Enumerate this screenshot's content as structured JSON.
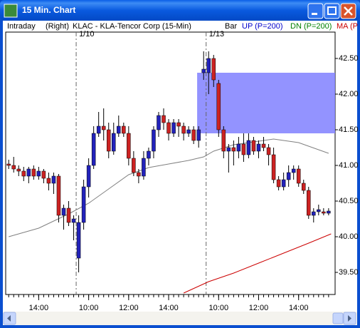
{
  "chart_data": {
    "type": "candlestick",
    "window_title": "15 Min. Chart",
    "header": [
      "Intraday",
      "(Right)",
      "KLAC - KLA-Tencor Corp (15-Min)",
      "Bar",
      "UP (P=200)",
      "DN (P=200)",
      "MA (P"
    ],
    "header_colors": [
      "#000000",
      "#000000",
      "#000000",
      "#000000",
      "#0000cc",
      "#008000",
      "#cc0000"
    ],
    "day_labels": [
      {
        "value": 13.5,
        "label": "1/10"
      },
      {
        "value": 39.5,
        "label": "1/13"
      }
    ],
    "up_color": "#2222bb",
    "down_color": "#cc2222",
    "open": [
      41.02,
      41.0,
      40.95,
      40.92,
      40.85,
      40.95,
      40.85,
      40.92,
      40.82,
      40.75,
      40.85,
      40.3,
      40.4,
      40.2,
      39.7,
      40.2,
      40.7,
      41.0,
      41.45,
      41.55,
      41.5,
      41.2,
      41.45,
      41.55,
      41.45,
      41.1,
      40.9,
      40.85,
      41.1,
      41.2,
      41.5,
      41.7,
      41.6,
      41.45,
      41.6,
      41.55,
      41.45,
      41.5,
      41.35,
      42.3,
      42.3,
      42.5,
      42.15,
      41.5,
      41.2,
      41.25,
      41.2,
      41.3,
      41.15,
      41.35,
      41.2,
      41.3,
      41.25,
      41.15,
      40.8,
      40.7,
      40.8,
      40.9,
      40.95,
      40.75,
      40.65,
      40.3,
      40.35,
      40.35,
      40.33
    ],
    "high": [
      41.08,
      41.12,
      41.0,
      40.98,
      40.98,
      41.0,
      40.98,
      40.95,
      40.9,
      40.9,
      40.88,
      40.45,
      40.5,
      40.3,
      40.3,
      40.8,
      41.1,
      41.55,
      41.75,
      41.8,
      41.6,
      41.6,
      41.7,
      41.6,
      41.55,
      41.2,
      40.95,
      41.2,
      41.25,
      41.55,
      41.75,
      41.8,
      41.65,
      41.65,
      41.65,
      41.6,
      41.55,
      41.55,
      41.55,
      42.6,
      42.6,
      42.55,
      42.2,
      41.55,
      41.3,
      41.35,
      41.4,
      41.45,
      41.45,
      41.4,
      41.35,
      41.4,
      41.3,
      41.25,
      40.85,
      40.9,
      41.0,
      41.0,
      41.0,
      40.8,
      40.7,
      40.4,
      40.45,
      40.4,
      40.4
    ],
    "low": [
      40.95,
      40.9,
      40.85,
      40.78,
      40.75,
      40.8,
      40.8,
      40.75,
      40.65,
      40.6,
      40.2,
      40.1,
      40.15,
      39.95,
      39.5,
      40.1,
      40.55,
      40.95,
      41.4,
      41.35,
      41.1,
      41.15,
      41.4,
      41.4,
      41.0,
      40.85,
      40.75,
      40.8,
      41.0,
      41.1,
      41.4,
      41.5,
      41.35,
      41.4,
      41.4,
      41.35,
      41.4,
      41.3,
      41.25,
      42.2,
      42.0,
      42.1,
      41.4,
      41.1,
      40.9,
      41.0,
      41.1,
      41.05,
      41.1,
      41.15,
      41.1,
      41.2,
      41.0,
      40.75,
      40.65,
      40.65,
      40.7,
      40.8,
      40.7,
      40.6,
      40.25,
      40.2,
      40.3,
      40.3,
      40.3
    ],
    "close": [
      41.0,
      40.95,
      40.92,
      40.85,
      40.95,
      40.85,
      40.92,
      40.82,
      40.75,
      40.85,
      40.3,
      40.4,
      40.2,
      40.25,
      40.2,
      40.7,
      41.0,
      41.45,
      41.55,
      41.5,
      41.2,
      41.45,
      41.55,
      41.45,
      41.1,
      40.9,
      40.85,
      41.1,
      41.2,
      41.5,
      41.7,
      41.6,
      41.45,
      41.6,
      41.55,
      41.45,
      41.5,
      41.35,
      41.5,
      42.35,
      42.5,
      42.2,
      41.5,
      41.2,
      41.25,
      41.2,
      41.3,
      41.15,
      41.35,
      41.2,
      41.3,
      41.25,
      41.15,
      40.8,
      40.7,
      40.8,
      40.9,
      40.95,
      40.75,
      40.65,
      40.3,
      40.35,
      40.38,
      40.33,
      40.36
    ],
    "lines": [
      {
        "color": "#808080",
        "x": [
          0,
          6,
          12,
          16,
          20,
          24,
          28,
          32,
          36,
          39,
          41,
          45,
          50,
          53,
          58,
          64
        ],
        "values": [
          40.0,
          40.12,
          40.32,
          40.47,
          40.67,
          40.87,
          40.97,
          41.02,
          41.07,
          41.12,
          41.2,
          41.29,
          41.34,
          41.37,
          41.32,
          41.17
        ]
      },
      {
        "color": "#cc0000",
        "x": [
          35,
          40,
          45,
          50,
          55,
          60,
          64.5
        ],
        "values": [
          39.21,
          39.37,
          39.49,
          39.63,
          39.77,
          39.91,
          40.04
        ]
      }
    ],
    "zone": {
      "x_start": 37.7,
      "low": 41.45,
      "high": 42.3,
      "color": "#8080ff"
    },
    "xlim": [
      -0.6,
      65.3
    ],
    "ylim": [
      39.19,
      42.87
    ],
    "yticks": [
      {
        "value": 39.5,
        "label": "39.50"
      },
      {
        "value": 40,
        "label": "40.00"
      },
      {
        "value": 40.5,
        "label": "40.50"
      },
      {
        "value": 41,
        "label": "41.00"
      },
      {
        "value": 41.5,
        "label": "41.50"
      },
      {
        "value": 42,
        "label": "42.00"
      },
      {
        "value": 42.5,
        "label": "42.50"
      }
    ],
    "xticks": [
      {
        "value": 6,
        "label": "14:00"
      },
      {
        "value": 16,
        "label": "10:00"
      },
      {
        "value": 24,
        "label": "12:00"
      },
      {
        "value": 32,
        "label": "14:00"
      },
      {
        "value": 42,
        "label": "10:00"
      },
      {
        "value": 50,
        "label": "12:00"
      },
      {
        "value": 58,
        "label": "14:00"
      }
    ]
  }
}
